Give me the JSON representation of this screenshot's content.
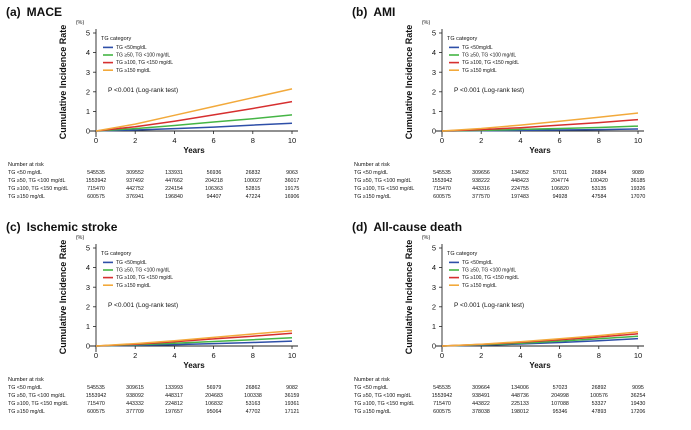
{
  "chart_data": [
    {
      "type": "line",
      "panel_label": "(a)",
      "title": "MACE",
      "ylabel": "Cumulative Incidence Rate",
      "yunit": "(%)",
      "xlabel": "Years",
      "xlim": [
        0,
        10
      ],
      "ylim": [
        0,
        5
      ],
      "xticks": [
        0,
        2,
        4,
        6,
        8,
        10
      ],
      "yticks": [
        0,
        1,
        2,
        3,
        4,
        5
      ],
      "legend_title": "TG category",
      "pvalue_text": "P <0.001 (Log-rank test)",
      "series": [
        {
          "name": "TG <50mg/dL",
          "color": "#2e4fa8",
          "x": [
            0,
            2,
            4,
            6,
            8,
            10
          ],
          "y": [
            0,
            0.05,
            0.12,
            0.2,
            0.3,
            0.4
          ]
        },
        {
          "name": "TG ≥50, TG <100 mg/dL",
          "color": "#45b545",
          "x": [
            0,
            2,
            4,
            6,
            8,
            10
          ],
          "y": [
            0,
            0.12,
            0.28,
            0.46,
            0.63,
            0.82
          ]
        },
        {
          "name": "TG ≥100, TG <150 mg/dL",
          "color": "#d62f2f",
          "x": [
            0,
            2,
            4,
            6,
            8,
            10
          ],
          "y": [
            0,
            0.22,
            0.5,
            0.82,
            1.15,
            1.5
          ]
        },
        {
          "name": "TG ≥150 mg/dL",
          "color": "#f2a93b",
          "x": [
            0,
            2,
            4,
            6,
            8,
            10
          ],
          "y": [
            0,
            0.35,
            0.8,
            1.25,
            1.7,
            2.15
          ]
        }
      ],
      "risk_table": {
        "header": "Number at risk",
        "rows": [
          {
            "label": "TG <50 mg/dL",
            "values": [
              "545535",
              "309552",
              "133931",
              "56936",
              "26832",
              "9063"
            ]
          },
          {
            "label": "TG ≥50, TG <100 mg/dL",
            "values": [
              "1553942",
              "937492",
              "447662",
              "204218",
              "100027",
              "36017"
            ]
          },
          {
            "label": "TG ≥100, TG <150 mg/dL",
            "values": [
              "715470",
              "442752",
              "224154",
              "106363",
              "52815",
              "19175"
            ]
          },
          {
            "label": "TG ≥150 mg/dL",
            "values": [
              "600575",
              "376941",
              "196840",
              "94407",
              "47224",
              "16906"
            ]
          }
        ]
      }
    },
    {
      "type": "line",
      "panel_label": "(b)",
      "title": "AMI",
      "ylabel": "Cumulative Incidence Rate",
      "yunit": "(%)",
      "xlabel": "Years",
      "xlim": [
        0,
        10
      ],
      "ylim": [
        0,
        5
      ],
      "xticks": [
        0,
        2,
        4,
        6,
        8,
        10
      ],
      "yticks": [
        0,
        1,
        2,
        3,
        4,
        5
      ],
      "legend_title": "TG category",
      "pvalue_text": "P <0.001 (Log-rank test)",
      "series": [
        {
          "name": "TG <50mg/dL",
          "color": "#2e4fa8",
          "x": [
            0,
            2,
            4,
            6,
            8,
            10
          ],
          "y": [
            0,
            0.01,
            0.03,
            0.05,
            0.07,
            0.1
          ]
        },
        {
          "name": "TG ≥50, TG <100 mg/dL",
          "color": "#45b545",
          "x": [
            0,
            2,
            4,
            6,
            8,
            10
          ],
          "y": [
            0,
            0.03,
            0.08,
            0.13,
            0.18,
            0.25
          ]
        },
        {
          "name": "TG ≥100, TG <150 mg/dL",
          "color": "#d62f2f",
          "x": [
            0,
            2,
            4,
            6,
            8,
            10
          ],
          "y": [
            0,
            0.07,
            0.17,
            0.3,
            0.43,
            0.58
          ]
        },
        {
          "name": "TG ≥150 mg/dL",
          "color": "#f2a93b",
          "x": [
            0,
            2,
            4,
            6,
            8,
            10
          ],
          "y": [
            0,
            0.13,
            0.3,
            0.5,
            0.7,
            0.92
          ]
        }
      ],
      "risk_table": {
        "header": "Number at risk",
        "rows": [
          {
            "label": "TG <50 mg/dL",
            "values": [
              "545535",
              "309656",
              "134052",
              "57011",
              "26884",
              "9089"
            ]
          },
          {
            "label": "TG ≥50, TG <100 mg/dL",
            "values": [
              "1553942",
              "938222",
              "448423",
              "204774",
              "100420",
              "36185"
            ]
          },
          {
            "label": "TG ≥100, TG <150 mg/dL",
            "values": [
              "715470",
              "443316",
              "224755",
              "106820",
              "53135",
              "19326"
            ]
          },
          {
            "label": "TG ≥150 mg/dL",
            "values": [
              "600575",
              "377570",
              "197483",
              "94928",
              "47584",
              "17070"
            ]
          }
        ]
      }
    },
    {
      "type": "line",
      "panel_label": "(c)",
      "title": "Ischemic stroke",
      "ylabel": "Cumulative Incidence Rate",
      "yunit": "(%)",
      "xlabel": "Years",
      "xlim": [
        0,
        10
      ],
      "ylim": [
        0,
        5
      ],
      "xticks": [
        0,
        2,
        4,
        6,
        8,
        10
      ],
      "yticks": [
        0,
        1,
        2,
        3,
        4,
        5
      ],
      "legend_title": "TG category",
      "pvalue_text": "P <0.001 (Log-rank test)",
      "series": [
        {
          "name": "TG <50mg/dL",
          "color": "#2e4fa8",
          "x": [
            0,
            2,
            4,
            6,
            8,
            10
          ],
          "y": [
            0,
            0.03,
            0.07,
            0.12,
            0.18,
            0.25
          ]
        },
        {
          "name": "TG ≥50, TG <100 mg/dL",
          "color": "#45b545",
          "x": [
            0,
            2,
            4,
            6,
            8,
            10
          ],
          "y": [
            0,
            0.06,
            0.14,
            0.23,
            0.32,
            0.42
          ]
        },
        {
          "name": "TG ≥100, TG <150 mg/dL",
          "color": "#d62f2f",
          "x": [
            0,
            2,
            4,
            6,
            8,
            10
          ],
          "y": [
            0,
            0.09,
            0.22,
            0.36,
            0.5,
            0.65
          ]
        },
        {
          "name": "TG ≥150 mg/dL",
          "color": "#f2a93b",
          "x": [
            0,
            2,
            4,
            6,
            8,
            10
          ],
          "y": [
            0,
            0.12,
            0.27,
            0.44,
            0.61,
            0.78
          ]
        }
      ],
      "risk_table": {
        "header": "Number at risk",
        "rows": [
          {
            "label": "TG <50 mg/dL",
            "values": [
              "545535",
              "309615",
              "133993",
              "56979",
              "26862",
              "9082"
            ]
          },
          {
            "label": "TG ≥50, TG <100 mg/dL",
            "values": [
              "1553942",
              "938092",
              "448317",
              "204683",
              "100338",
              "36159"
            ]
          },
          {
            "label": "TG ≥100, TG <150 mg/dL",
            "values": [
              "715470",
              "443332",
              "224812",
              "106832",
              "53163",
              "19361"
            ]
          },
          {
            "label": "TG ≥150 mg/dL",
            "values": [
              "600575",
              "377709",
              "197657",
              "95064",
              "47702",
              "17121"
            ]
          }
        ]
      }
    },
    {
      "type": "line",
      "panel_label": "(d)",
      "title": "All-cause death",
      "ylabel": "Cumulative Incidence Rate",
      "yunit": "(%)",
      "xlabel": "Years",
      "xlim": [
        0,
        10
      ],
      "ylim": [
        0,
        5
      ],
      "xticks": [
        0,
        2,
        4,
        6,
        8,
        10
      ],
      "yticks": [
        0,
        1,
        2,
        3,
        4,
        5
      ],
      "legend_title": "TG category",
      "pvalue_text": "P <0.001 (Log-rank test)",
      "series": [
        {
          "name": "TG <50mg/dL",
          "color": "#2e4fa8",
          "x": [
            0,
            2,
            4,
            6,
            8,
            10
          ],
          "y": [
            0,
            0.04,
            0.1,
            0.18,
            0.27,
            0.38
          ]
        },
        {
          "name": "TG ≥50, TG <100 mg/dL",
          "color": "#45b545",
          "x": [
            0,
            2,
            4,
            6,
            8,
            10
          ],
          "y": [
            0,
            0.06,
            0.14,
            0.25,
            0.37,
            0.5
          ]
        },
        {
          "name": "TG ≥100, TG <150 mg/dL",
          "color": "#d62f2f",
          "x": [
            0,
            2,
            4,
            6,
            8,
            10
          ],
          "y": [
            0,
            0.08,
            0.19,
            0.32,
            0.46,
            0.62
          ]
        },
        {
          "name": "TG ≥150 mg/dL",
          "color": "#f2a93b",
          "x": [
            0,
            2,
            4,
            6,
            8,
            10
          ],
          "y": [
            0,
            0.09,
            0.22,
            0.37,
            0.53,
            0.72
          ]
        }
      ],
      "risk_table": {
        "header": "Number at risk",
        "rows": [
          {
            "label": "TG <50 mg/dL",
            "values": [
              "545535",
              "309664",
              "134006",
              "57023",
              "26892",
              "9095"
            ]
          },
          {
            "label": "TG ≥50, TG <100 mg/dL",
            "values": [
              "1553942",
              "938491",
              "448736",
              "204998",
              "100576",
              "36254"
            ]
          },
          {
            "label": "TG ≥100, TG <150 mg/dL",
            "values": [
              "715470",
              "443822",
              "225133",
              "107088",
              "53327",
              "19430"
            ]
          },
          {
            "label": "TG ≥150 mg/dL",
            "values": [
              "600575",
              "378038",
              "198012",
              "95346",
              "47893",
              "17206"
            ]
          }
        ]
      }
    }
  ]
}
